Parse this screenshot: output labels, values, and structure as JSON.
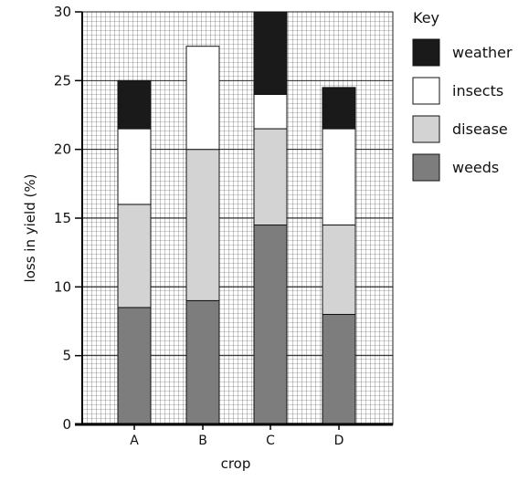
{
  "chart_data": {
    "type": "bar",
    "stacked": true,
    "xlabel": "crop",
    "ylabel": "loss in yield (%)",
    "ylim": [
      0,
      30
    ],
    "yticks": [
      0,
      5,
      10,
      15,
      20,
      25,
      30
    ],
    "grid": true,
    "legend_position": "right",
    "legend_title": "Key",
    "categories": [
      "A",
      "B",
      "C",
      "D"
    ],
    "series": [
      {
        "name": "weeds",
        "color": "#7d7d7d",
        "values": [
          8.5,
          9,
          14.5,
          8
        ]
      },
      {
        "name": "disease",
        "color": "#d3d3d3",
        "values": [
          7.5,
          11,
          7,
          6.5
        ]
      },
      {
        "name": "insects",
        "color": "#ffffff",
        "values": [
          5.5,
          7.5,
          2.5,
          7
        ]
      },
      {
        "name": "weather",
        "color": "#1a1a1a",
        "values": [
          3.5,
          0,
          6,
          3
        ]
      }
    ],
    "legend_order": [
      "weather",
      "insects",
      "disease",
      "weeds"
    ]
  }
}
